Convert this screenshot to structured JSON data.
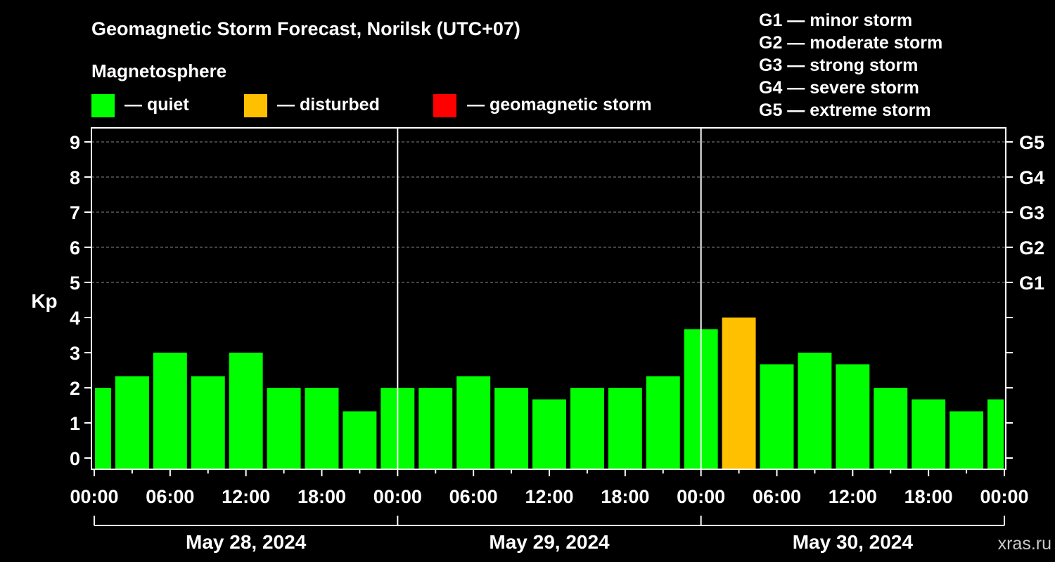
{
  "chart_data": {
    "type": "bar",
    "title": "Geomagnetic Storm Forecast, Norilsk (UTC+07)",
    "ylabel": "Kp",
    "ylim": [
      0,
      9
    ],
    "y_ticks": [
      "0",
      "1",
      "2",
      "3",
      "4",
      "5",
      "6",
      "7",
      "8",
      "9"
    ],
    "right_ticks": [
      {
        "kp": 5,
        "label": "G1"
      },
      {
        "kp": 6,
        "label": "G2"
      },
      {
        "kp": 7,
        "label": "G3"
      },
      {
        "kp": 8,
        "label": "G4"
      },
      {
        "kp": 9,
        "label": "G5"
      }
    ],
    "grid_levels": [
      5,
      6,
      7,
      8,
      9
    ],
    "x_tick_labels": [
      "00:00",
      "06:00",
      "12:00",
      "18:00",
      "00:00",
      "06:00",
      "12:00",
      "18:00",
      "00:00",
      "06:00",
      "12:00",
      "18:00",
      "00:00"
    ],
    "days": [
      "May 28, 2024",
      "May 29, 2024",
      "May 30, 2024"
    ],
    "interval_hours": 3,
    "bars": [
      {
        "start_hour": 0,
        "value": 2.0,
        "status": "quiet"
      },
      {
        "start_hour": 3,
        "value": 2.33,
        "status": "quiet"
      },
      {
        "start_hour": 6,
        "value": 3.0,
        "status": "quiet"
      },
      {
        "start_hour": 9,
        "value": 2.33,
        "status": "quiet"
      },
      {
        "start_hour": 12,
        "value": 3.0,
        "status": "quiet"
      },
      {
        "start_hour": 15,
        "value": 2.0,
        "status": "quiet"
      },
      {
        "start_hour": 18,
        "value": 2.0,
        "status": "quiet"
      },
      {
        "start_hour": 21,
        "value": 1.33,
        "status": "quiet"
      },
      {
        "start_hour": 24,
        "value": 2.0,
        "status": "quiet"
      },
      {
        "start_hour": 27,
        "value": 2.0,
        "status": "quiet"
      },
      {
        "start_hour": 30,
        "value": 2.33,
        "status": "quiet"
      },
      {
        "start_hour": 33,
        "value": 2.0,
        "status": "quiet"
      },
      {
        "start_hour": 36,
        "value": 1.67,
        "status": "quiet"
      },
      {
        "start_hour": 39,
        "value": 2.0,
        "status": "quiet"
      },
      {
        "start_hour": 42,
        "value": 2.0,
        "status": "quiet"
      },
      {
        "start_hour": 45,
        "value": 2.33,
        "status": "quiet"
      },
      {
        "start_hour": 48,
        "value": 3.67,
        "status": "quiet"
      },
      {
        "start_hour": 51,
        "value": 4.0,
        "status": "disturbed"
      },
      {
        "start_hour": 54,
        "value": 2.67,
        "status": "quiet"
      },
      {
        "start_hour": 57,
        "value": 3.0,
        "status": "quiet"
      },
      {
        "start_hour": 60,
        "value": 2.67,
        "status": "quiet"
      },
      {
        "start_hour": 63,
        "value": 2.0,
        "status": "quiet"
      },
      {
        "start_hour": 66,
        "value": 1.67,
        "status": "quiet"
      },
      {
        "start_hour": 69,
        "value": 1.33,
        "status": "quiet"
      },
      {
        "start_hour": 72,
        "value": 1.67,
        "status": "quiet"
      }
    ]
  },
  "legend": {
    "title": "Magnetosphere",
    "items": [
      {
        "key": "quiet",
        "label": "— quiet",
        "color": "#00ff00"
      },
      {
        "key": "disturbed",
        "label": "— disturbed",
        "color": "#ffc000"
      },
      {
        "key": "storm",
        "label": "— geomagnetic storm",
        "color": "#ff0000"
      }
    ]
  },
  "storm_scale": [
    "G1 — minor storm",
    "G2 — moderate storm",
    "G3 — strong storm",
    "G4 — severe storm",
    "G5 — extreme storm"
  ],
  "watermark": "xras.ru",
  "colors": {
    "background": "#000000",
    "foreground": "#ffffff",
    "grid": "#888888",
    "watermark": "#c8c8c8"
  }
}
